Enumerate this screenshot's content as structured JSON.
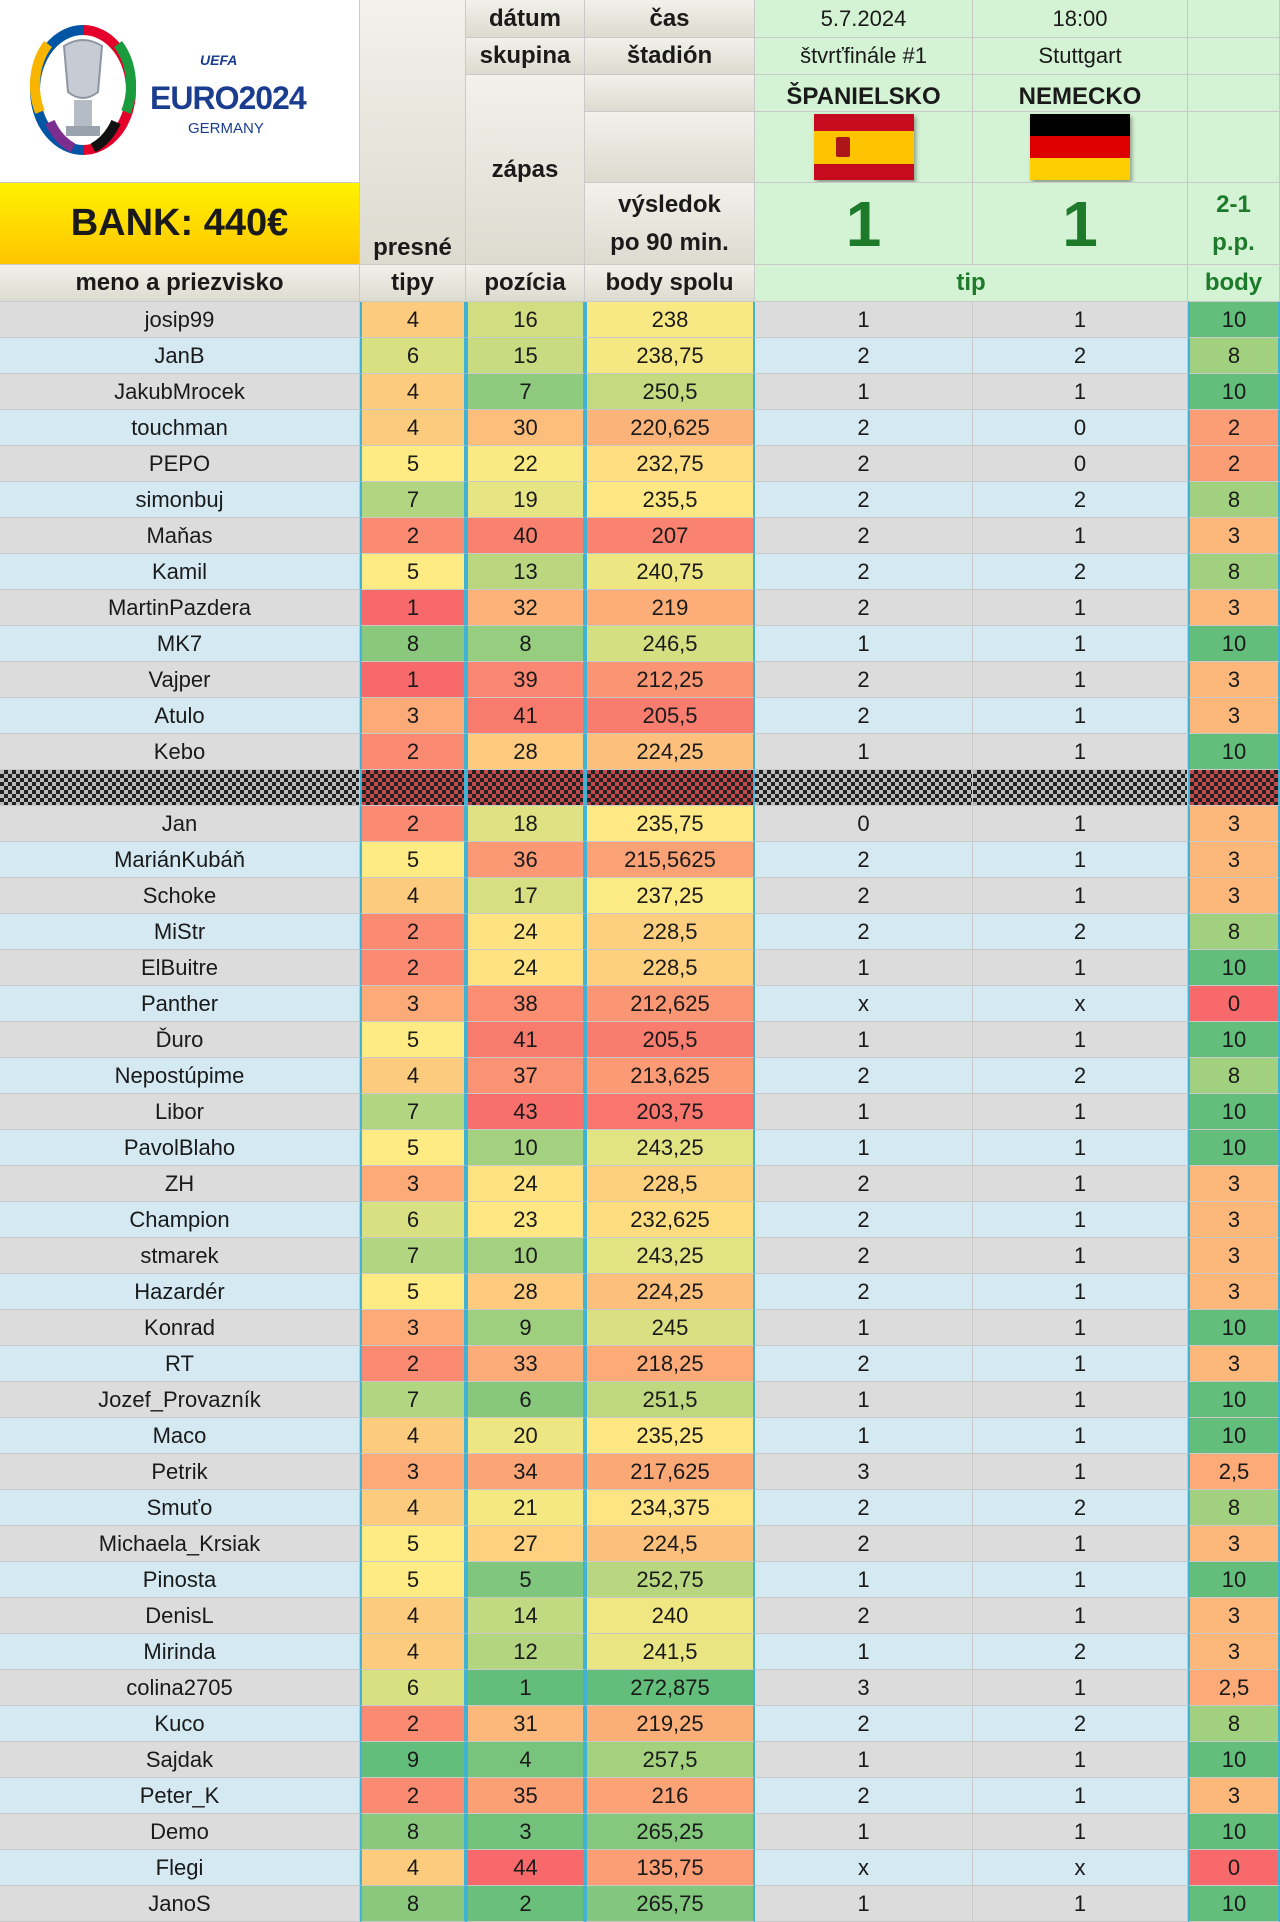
{
  "header": {
    "datum_label": "dátum",
    "cas_label": "čas",
    "skupina_label": "skupina",
    "stadion_label": "štadión",
    "zapas_label": "zápas",
    "vysledok_label_1": "výsledok",
    "vysledok_label_2": "po 90 min.",
    "presne_label": "presné",
    "tipy_label": "tipy",
    "meno_label": "meno a priezvisko",
    "pozicia_label": "pozícia",
    "body_spolu_label": "body spolu",
    "tip_label": "tip",
    "body_label": "body",
    "bank": "BANK: 440€"
  },
  "logo": {
    "uefa": "UEFA",
    "euro": "EURO2024",
    "germany": "GERMANY"
  },
  "match": {
    "date": "5.7.2024",
    "time": "18:00",
    "round": "štvrťfinále #1",
    "city": "Stuttgart",
    "home": "ŠPANIELSKO",
    "away": "NEMECKO",
    "home_score": "1",
    "away_score": "1",
    "pp_1": "2-1",
    "pp_2": "p.p."
  },
  "colors": {
    "row_a": "#dcdcdc",
    "row_b": "#d4e9f2",
    "match_bg": "#d4f3d4",
    "accent_border": "#3fb2d6",
    "bank_top": "#fff200",
    "bank_bottom": "#ffc400",
    "score_green": "#1c7a2a",
    "scale_low": "#f8696b",
    "scale_mid": "#ffeb84",
    "scale_high": "#63be7b"
  },
  "rows": [
    {
      "name": "josip99",
      "tipy": "4",
      "poz": "16",
      "spolu": "238",
      "t1": "1",
      "t2": "1",
      "body": "10"
    },
    {
      "name": "JanB",
      "tipy": "6",
      "poz": "15",
      "spolu": "238,75",
      "t1": "2",
      "t2": "2",
      "body": "8"
    },
    {
      "name": "JakubMrocek",
      "tipy": "4",
      "poz": "7",
      "spolu": "250,5",
      "t1": "1",
      "t2": "1",
      "body": "10"
    },
    {
      "name": "touchman",
      "tipy": "4",
      "poz": "30",
      "spolu": "220,625",
      "t1": "2",
      "t2": "0",
      "body": "2"
    },
    {
      "name": "PEPO",
      "tipy": "5",
      "poz": "22",
      "spolu": "232,75",
      "t1": "2",
      "t2": "0",
      "body": "2"
    },
    {
      "name": "simonbuj",
      "tipy": "7",
      "poz": "19",
      "spolu": "235,5",
      "t1": "2",
      "t2": "2",
      "body": "8"
    },
    {
      "name": "Maňas",
      "tipy": "2",
      "poz": "40",
      "spolu": "207",
      "t1": "2",
      "t2": "1",
      "body": "3"
    },
    {
      "name": "Kamil",
      "tipy": "5",
      "poz": "13",
      "spolu": "240,75",
      "t1": "2",
      "t2": "2",
      "body": "8"
    },
    {
      "name": "MartinPazdera",
      "tipy": "1",
      "poz": "32",
      "spolu": "219",
      "t1": "2",
      "t2": "1",
      "body": "3"
    },
    {
      "name": "MK7",
      "tipy": "8",
      "poz": "8",
      "spolu": "246,5",
      "t1": "1",
      "t2": "1",
      "body": "10"
    },
    {
      "name": "Vajper",
      "tipy": "1",
      "poz": "39",
      "spolu": "212,25",
      "t1": "2",
      "t2": "1",
      "body": "3"
    },
    {
      "name": "Atulo",
      "tipy": "3",
      "poz": "41",
      "spolu": "205,5",
      "t1": "2",
      "t2": "1",
      "body": "3"
    },
    {
      "name": "Kebo",
      "tipy": "2",
      "poz": "28",
      "spolu": "224,25",
      "t1": "1",
      "t2": "1",
      "body": "10"
    },
    {
      "name": "",
      "tipy": "",
      "poz": "",
      "spolu": "",
      "t1": "",
      "t2": "",
      "body": "",
      "hidden": true
    },
    {
      "name": "Jan",
      "tipy": "2",
      "poz": "18",
      "spolu": "235,75",
      "t1": "0",
      "t2": "1",
      "body": "3"
    },
    {
      "name": "MariánKubáň",
      "tipy": "5",
      "poz": "36",
      "spolu": "215,5625",
      "t1": "2",
      "t2": "1",
      "body": "3"
    },
    {
      "name": "Schoke",
      "tipy": "4",
      "poz": "17",
      "spolu": "237,25",
      "t1": "2",
      "t2": "1",
      "body": "3"
    },
    {
      "name": "MiStr",
      "tipy": "2",
      "poz": "24",
      "spolu": "228,5",
      "t1": "2",
      "t2": "2",
      "body": "8"
    },
    {
      "name": "ElBuitre",
      "tipy": "2",
      "poz": "24",
      "spolu": "228,5",
      "t1": "1",
      "t2": "1",
      "body": "10"
    },
    {
      "name": "Panther",
      "tipy": "3",
      "poz": "38",
      "spolu": "212,625",
      "t1": "x",
      "t2": "x",
      "body": "0"
    },
    {
      "name": "Ďuro",
      "tipy": "5",
      "poz": "41",
      "spolu": "205,5",
      "t1": "1",
      "t2": "1",
      "body": "10"
    },
    {
      "name": "Nepostúpime",
      "tipy": "4",
      "poz": "37",
      "spolu": "213,625",
      "t1": "2",
      "t2": "2",
      "body": "8"
    },
    {
      "name": "Libor",
      "tipy": "7",
      "poz": "43",
      "spolu": "203,75",
      "t1": "1",
      "t2": "1",
      "body": "10"
    },
    {
      "name": "PavolBlaho",
      "tipy": "5",
      "poz": "10",
      "spolu": "243,25",
      "t1": "1",
      "t2": "1",
      "body": "10"
    },
    {
      "name": "ZH",
      "tipy": "3",
      "poz": "24",
      "spolu": "228,5",
      "t1": "2",
      "t2": "1",
      "body": "3"
    },
    {
      "name": "Champion",
      "tipy": "6",
      "poz": "23",
      "spolu": "232,625",
      "t1": "2",
      "t2": "1",
      "body": "3"
    },
    {
      "name": "stmarek",
      "tipy": "7",
      "poz": "10",
      "spolu": "243,25",
      "t1": "2",
      "t2": "1",
      "body": "3"
    },
    {
      "name": "Hazardér",
      "tipy": "5",
      "poz": "28",
      "spolu": "224,25",
      "t1": "2",
      "t2": "1",
      "body": "3"
    },
    {
      "name": "Konrad",
      "tipy": "3",
      "poz": "9",
      "spolu": "245",
      "t1": "1",
      "t2": "1",
      "body": "10"
    },
    {
      "name": "RT",
      "tipy": "2",
      "poz": "33",
      "spolu": "218,25",
      "t1": "2",
      "t2": "1",
      "body": "3"
    },
    {
      "name": "Jozef_Provazník",
      "tipy": "7",
      "poz": "6",
      "spolu": "251,5",
      "t1": "1",
      "t2": "1",
      "body": "10"
    },
    {
      "name": "Maco",
      "tipy": "4",
      "poz": "20",
      "spolu": "235,25",
      "t1": "1",
      "t2": "1",
      "body": "10"
    },
    {
      "name": "Petrik",
      "tipy": "3",
      "poz": "34",
      "spolu": "217,625",
      "t1": "3",
      "t2": "1",
      "body": "2,5"
    },
    {
      "name": "Smuťo",
      "tipy": "4",
      "poz": "21",
      "spolu": "234,375",
      "t1": "2",
      "t2": "2",
      "body": "8"
    },
    {
      "name": "Michaela_Krsiak",
      "tipy": "5",
      "poz": "27",
      "spolu": "224,5",
      "t1": "2",
      "t2": "1",
      "body": "3"
    },
    {
      "name": "Pinosta",
      "tipy": "5",
      "poz": "5",
      "spolu": "252,75",
      "t1": "1",
      "t2": "1",
      "body": "10"
    },
    {
      "name": "DenisL",
      "tipy": "4",
      "poz": "14",
      "spolu": "240",
      "t1": "2",
      "t2": "1",
      "body": "3"
    },
    {
      "name": "Mirinda",
      "tipy": "4",
      "poz": "12",
      "spolu": "241,5",
      "t1": "1",
      "t2": "2",
      "body": "3"
    },
    {
      "name": "colina2705",
      "tipy": "6",
      "poz": "1",
      "spolu": "272,875",
      "t1": "3",
      "t2": "1",
      "body": "2,5"
    },
    {
      "name": "Kuco",
      "tipy": "2",
      "poz": "31",
      "spolu": "219,25",
      "t1": "2",
      "t2": "2",
      "body": "8"
    },
    {
      "name": "Sajdak",
      "tipy": "9",
      "poz": "4",
      "spolu": "257,5",
      "t1": "1",
      "t2": "1",
      "body": "10"
    },
    {
      "name": "Peter_K",
      "tipy": "2",
      "poz": "35",
      "spolu": "216",
      "t1": "2",
      "t2": "1",
      "body": "3"
    },
    {
      "name": "Demo",
      "tipy": "8",
      "poz": "3",
      "spolu": "265,25",
      "t1": "1",
      "t2": "1",
      "body": "10"
    },
    {
      "name": "Flegi",
      "tipy": "4",
      "poz": "44",
      "spolu": "135,75",
      "t1": "x",
      "t2": "x",
      "body": "0"
    },
    {
      "name": "JanoS",
      "tipy": "8",
      "poz": "2",
      "spolu": "265,75",
      "t1": "1",
      "t2": "1",
      "body": "10"
    }
  ]
}
